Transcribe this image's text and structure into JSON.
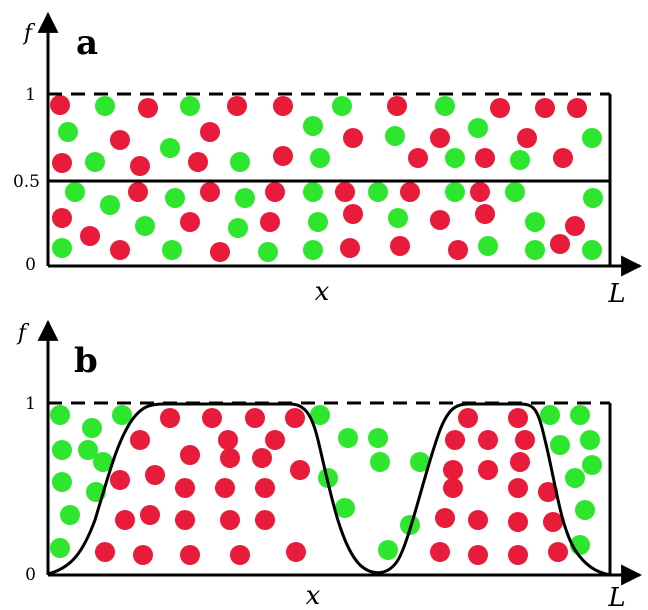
{
  "colors": {
    "red": "#e81b3a",
    "green": "#2ee62e",
    "ink": "#000000"
  },
  "panel_a": {
    "label": "a",
    "y_axis_label": "f",
    "x_axis_label": "x",
    "x_end_label": "L",
    "ticks": [
      "1",
      "0.5",
      "0"
    ],
    "red_particles": [
      [
        60,
        105
      ],
      [
        148,
        108
      ],
      [
        237,
        106
      ],
      [
        283,
        106
      ],
      [
        397,
        106
      ],
      [
        500,
        108
      ],
      [
        545,
        108
      ],
      [
        577,
        108
      ],
      [
        120,
        140
      ],
      [
        210,
        132
      ],
      [
        353,
        138
      ],
      [
        440,
        138
      ],
      [
        527,
        138
      ],
      [
        62,
        163
      ],
      [
        140,
        166
      ],
      [
        198,
        162
      ],
      [
        283,
        156
      ],
      [
        418,
        158
      ],
      [
        485,
        158
      ],
      [
        563,
        158
      ],
      [
        138,
        192
      ],
      [
        210,
        192
      ],
      [
        275,
        192
      ],
      [
        345,
        192
      ],
      [
        410,
        192
      ],
      [
        480,
        192
      ],
      [
        62,
        218
      ],
      [
        190,
        222
      ],
      [
        270,
        222
      ],
      [
        353,
        214
      ],
      [
        440,
        220
      ],
      [
        485,
        214
      ],
      [
        575,
        226
      ],
      [
        90,
        236
      ],
      [
        120,
        250
      ],
      [
        220,
        252
      ],
      [
        350,
        248
      ],
      [
        400,
        246
      ],
      [
        458,
        250
      ],
      [
        560,
        244
      ]
    ],
    "green_particles": [
      [
        105,
        106
      ],
      [
        190,
        106
      ],
      [
        342,
        106
      ],
      [
        445,
        106
      ],
      [
        68,
        132
      ],
      [
        170,
        148
      ],
      [
        313,
        126
      ],
      [
        395,
        136
      ],
      [
        478,
        128
      ],
      [
        592,
        138
      ],
      [
        95,
        162
      ],
      [
        240,
        162
      ],
      [
        320,
        158
      ],
      [
        455,
        158
      ],
      [
        520,
        160
      ],
      [
        75,
        192
      ],
      [
        110,
        205
      ],
      [
        175,
        198
      ],
      [
        245,
        198
      ],
      [
        313,
        192
      ],
      [
        378,
        192
      ],
      [
        455,
        192
      ],
      [
        515,
        192
      ],
      [
        593,
        198
      ],
      [
        145,
        226
      ],
      [
        238,
        228
      ],
      [
        318,
        222
      ],
      [
        398,
        218
      ],
      [
        535,
        222
      ],
      [
        62,
        248
      ],
      [
        172,
        250
      ],
      [
        268,
        252
      ],
      [
        313,
        250
      ],
      [
        488,
        246
      ],
      [
        535,
        250
      ],
      [
        592,
        250
      ]
    ]
  },
  "panel_b": {
    "label": "b",
    "y_axis_label": "f",
    "x_axis_label": "x",
    "x_end_label": "L",
    "ticks": [
      "1",
      "0"
    ],
    "red_particles": [
      [
        170,
        418
      ],
      [
        212,
        418
      ],
      [
        255,
        418
      ],
      [
        295,
        418
      ],
      [
        468,
        418
      ],
      [
        518,
        418
      ],
      [
        140,
        440
      ],
      [
        228,
        440
      ],
      [
        275,
        440
      ],
      [
        455,
        440
      ],
      [
        488,
        440
      ],
      [
        525,
        440
      ],
      [
        190,
        455
      ],
      [
        230,
        458
      ],
      [
        262,
        458
      ],
      [
        300,
        470
      ],
      [
        453,
        470
      ],
      [
        488,
        470
      ],
      [
        520,
        462
      ],
      [
        120,
        480
      ],
      [
        155,
        475
      ],
      [
        185,
        488
      ],
      [
        225,
        488
      ],
      [
        265,
        488
      ],
      [
        453,
        488
      ],
      [
        518,
        488
      ],
      [
        548,
        492
      ],
      [
        125,
        520
      ],
      [
        150,
        515
      ],
      [
        185,
        520
      ],
      [
        230,
        520
      ],
      [
        265,
        520
      ],
      [
        445,
        518
      ],
      [
        478,
        520
      ],
      [
        518,
        522
      ],
      [
        553,
        522
      ],
      [
        105,
        552
      ],
      [
        143,
        555
      ],
      [
        190,
        555
      ],
      [
        240,
        555
      ],
      [
        296,
        552
      ],
      [
        440,
        552
      ],
      [
        478,
        555
      ],
      [
        518,
        555
      ],
      [
        558,
        552
      ]
    ],
    "green_particles": [
      [
        60,
        415
      ],
      [
        92,
        428
      ],
      [
        122,
        415
      ],
      [
        320,
        415
      ],
      [
        550,
        415
      ],
      [
        580,
        415
      ],
      [
        62,
        450
      ],
      [
        88,
        450
      ],
      [
        348,
        438
      ],
      [
        378,
        438
      ],
      [
        560,
        445
      ],
      [
        590,
        440
      ],
      [
        62,
        482
      ],
      [
        96,
        492
      ],
      [
        103,
        462
      ],
      [
        328,
        478
      ],
      [
        380,
        462
      ],
      [
        420,
        462
      ],
      [
        575,
        478
      ],
      [
        592,
        465
      ],
      [
        70,
        515
      ],
      [
        345,
        508
      ],
      [
        410,
        525
      ],
      [
        585,
        510
      ],
      [
        60,
        548
      ],
      [
        388,
        550
      ],
      [
        580,
        545
      ]
    ]
  }
}
